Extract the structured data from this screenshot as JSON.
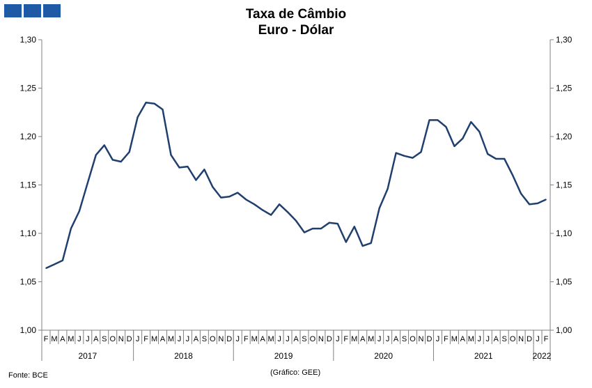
{
  "header": {
    "logo_icon": "three-blue-squares",
    "title_line1": "Taxa de Câmbio",
    "title_line2": "Euro - Dólar"
  },
  "footer": {
    "source": "Fonte: BCE",
    "credit": "(Gráfico: GEE)"
  },
  "chart_data": {
    "type": "line",
    "title": "Taxa de Câmbio Euro - Dólar",
    "xlabel": "",
    "ylabel": "",
    "ylim": [
      1.0,
      1.3
    ],
    "y_ticks": [
      "1,00",
      "1,05",
      "1,10",
      "1,15",
      "1,20",
      "1,25",
      "1,30"
    ],
    "y_axes": "both",
    "grid": false,
    "legend": "none",
    "line_color": "#1f3f6e",
    "month_labels": [
      "F",
      "M",
      "A",
      "M",
      "J",
      "J",
      "A",
      "S",
      "O",
      "N",
      "D",
      "J",
      "F",
      "M",
      "A",
      "M",
      "J",
      "J",
      "A",
      "S",
      "O",
      "N",
      "D",
      "J",
      "F",
      "M",
      "A",
      "M",
      "J",
      "J",
      "A",
      "S",
      "O",
      "N",
      "D",
      "J",
      "F",
      "M",
      "A",
      "M",
      "J",
      "J",
      "A",
      "S",
      "O",
      "N",
      "D",
      "J",
      "F",
      "M",
      "A",
      "M",
      "J",
      "J",
      "A",
      "S",
      "O",
      "N",
      "D",
      "J",
      "F"
    ],
    "years": [
      {
        "label": "2017",
        "months": 11
      },
      {
        "label": "2018",
        "months": 12
      },
      {
        "label": "2019",
        "months": 12
      },
      {
        "label": "2020",
        "months": 12
      },
      {
        "label": "2021",
        "months": 12
      },
      {
        "label": "2022",
        "months": 2
      }
    ],
    "series": [
      {
        "values": [
          1.064,
          1.068,
          1.072,
          1.105,
          1.123,
          1.152,
          1.181,
          1.191,
          1.176,
          1.174,
          1.184,
          1.22,
          1.235,
          1.234,
          1.228,
          1.181,
          1.168,
          1.169,
          1.155,
          1.166,
          1.148,
          1.137,
          1.138,
          1.142,
          1.135,
          1.13,
          1.124,
          1.119,
          1.13,
          1.122,
          1.113,
          1.101,
          1.105,
          1.105,
          1.111,
          1.11,
          1.091,
          1.107,
          1.087,
          1.09,
          1.126,
          1.146,
          1.183,
          1.18,
          1.178,
          1.184,
          1.217,
          1.217,
          1.21,
          1.19,
          1.198,
          1.215,
          1.205,
          1.182,
          1.177,
          1.177,
          1.16,
          1.141,
          1.13,
          1.131,
          1.135
        ]
      }
    ]
  }
}
